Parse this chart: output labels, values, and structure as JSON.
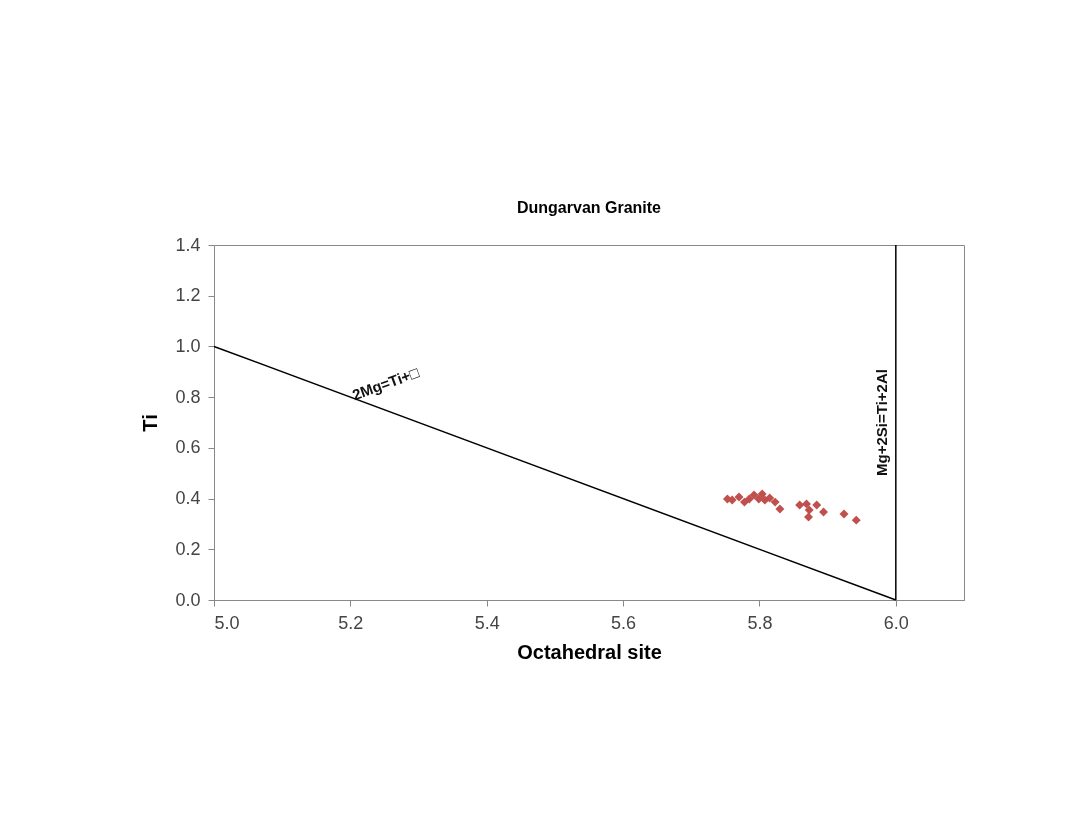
{
  "chart_data": {
    "type": "scatter",
    "title": "Dungarvan Granite",
    "xlabel": "Octahedral site",
    "ylabel": "Ti",
    "xlim": [
      5.0,
      6.1
    ],
    "ylim": [
      0.0,
      1.4
    ],
    "xticks": [
      {
        "value": 5.0,
        "label": "5.0"
      },
      5.2,
      5.4,
      5.6,
      5.8,
      {
        "value": 6.0,
        "label": "6.0"
      }
    ],
    "yticks": [
      {
        "value": 0.0,
        "label": "0.0"
      },
      0.2,
      0.4,
      0.6,
      0.8,
      {
        "value": 1.0,
        "label": "1.0"
      },
      1.2,
      1.4
    ],
    "grid": false,
    "series": [
      {
        "marker": "diamond",
        "color": "#c0504d",
        "x": [
          5.753,
          5.76,
          5.77,
          5.778,
          5.785,
          5.792,
          5.799,
          5.804,
          5.808,
          5.815,
          5.823,
          5.83,
          5.859,
          5.869,
          5.873,
          5.884,
          5.872,
          5.894,
          5.924,
          5.942
        ],
        "values": [
          0.398,
          0.394,
          0.406,
          0.386,
          0.398,
          0.414,
          0.398,
          0.418,
          0.394,
          0.402,
          0.386,
          0.359,
          0.375,
          0.379,
          0.355,
          0.375,
          0.327,
          0.347,
          0.339,
          0.315
        ]
      },
      {
        "type": "line",
        "name": "2Mg=Ti+□",
        "marker": "none",
        "line_style": "solid",
        "color": "#000000",
        "x": [
          5.0,
          6.0
        ],
        "values": [
          1.0,
          0.0
        ]
      }
    ],
    "ref_lines": [
      {
        "axis": "x",
        "value": 6.0,
        "label": "Mg+2Si=Ti+2Al",
        "color": "#000000",
        "line_style": "solid"
      }
    ]
  }
}
